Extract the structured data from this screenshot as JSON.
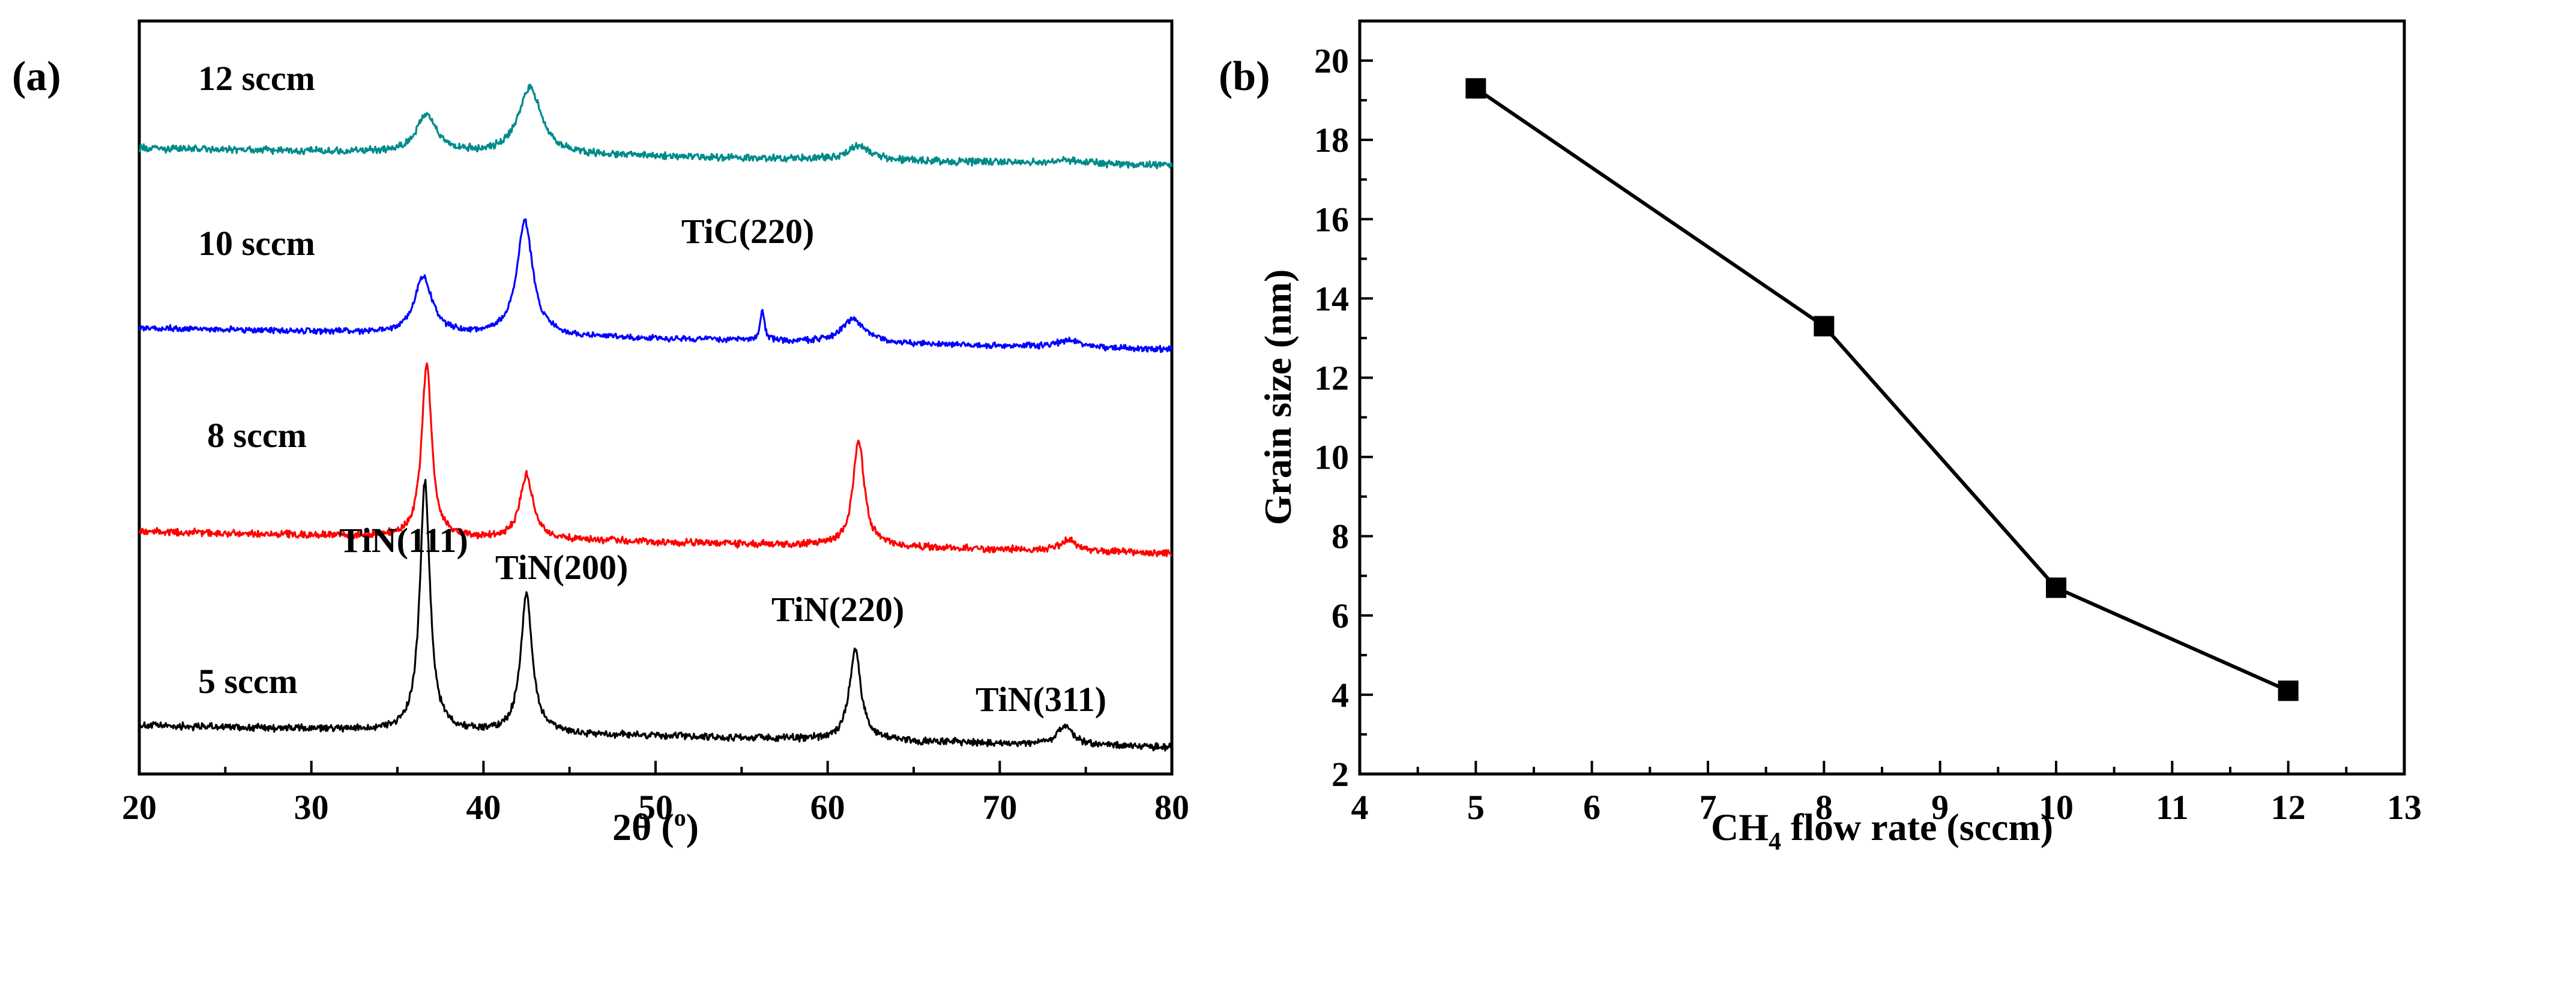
{
  "chart_data": [
    {
      "type": "line",
      "panel_label": "(a)",
      "title": "",
      "xlabel": "2θ (",
      "xlabel_superscript": "o",
      "xlabel_suffix": ")",
      "ylabel": "",
      "xlim": [
        20,
        80
      ],
      "xticks": [
        20,
        30,
        40,
        50,
        60,
        70,
        80
      ],
      "xticklabels": [
        "20",
        "30",
        "40",
        "50",
        "60",
        "70",
        "80"
      ],
      "yticks_visible": false,
      "grid": false,
      "series": [
        {
          "name": "5 sccm",
          "color": "#000000",
          "baseline": 0.0,
          "background": [
            0.14,
            0.05
          ],
          "noise": 0.012,
          "peaks": [
            {
              "x": 36.6,
              "height": 1.04,
              "width": 0.35
            },
            {
              "x": 42.5,
              "height": 0.58,
              "width": 0.4
            },
            {
              "x": 61.6,
              "height": 0.38,
              "width": 0.4
            },
            {
              "x": 73.8,
              "height": 0.08,
              "width": 0.5
            }
          ]
        },
        {
          "name": "8 sccm",
          "color": "#ff0000",
          "baseline": 0.82,
          "background": [
            0.13,
            0.04
          ],
          "noise": 0.012,
          "peaks": [
            {
              "x": 36.7,
              "height": 0.72,
              "width": 0.35
            },
            {
              "x": 42.5,
              "height": 0.27,
              "width": 0.45
            },
            {
              "x": 61.8,
              "height": 0.44,
              "width": 0.4
            },
            {
              "x": 74.0,
              "height": 0.05,
              "width": 0.5
            }
          ]
        },
        {
          "name": "10 sccm",
          "color": "#0000ff",
          "baseline": 1.67,
          "background": [
            0.13,
            0.04
          ],
          "noise": 0.01,
          "peaks": [
            {
              "x": 36.5,
              "height": 0.24,
              "width": 0.6
            },
            {
              "x": 42.4,
              "height": 0.48,
              "width": 0.55
            },
            {
              "x": 56.2,
              "height": 0.13,
              "width": 0.15
            },
            {
              "x": 61.5,
              "height": 0.1,
              "width": 0.8
            },
            {
              "x": 74.0,
              "height": 0.03,
              "width": 0.8
            }
          ]
        },
        {
          "name": "12 sccm",
          "color": "#008b8b",
          "baseline": 2.45,
          "background": [
            0.1,
            0.03
          ],
          "noise": 0.012,
          "peaks": [
            {
              "x": 36.7,
              "height": 0.16,
              "width": 0.7
            },
            {
              "x": 42.7,
              "height": 0.28,
              "width": 0.8
            },
            {
              "x": 61.8,
              "height": 0.06,
              "width": 0.8
            },
            {
              "x": 74.0,
              "height": 0.015,
              "width": 1.0
            }
          ]
        }
      ],
      "annotations": [
        "TiN(111)",
        "TiN(200)",
        "TiN(220)",
        "TiN(311)",
        "TiC(220)"
      ]
    },
    {
      "type": "line",
      "panel_label": "(b)",
      "title": "",
      "xlabel": "CH",
      "xlabel_subscript": "4",
      "xlabel_suffix": " flow rate (sccm)",
      "ylabel": "Grain size (nm)",
      "xlim": [
        4,
        13
      ],
      "ylim": [
        2,
        21
      ],
      "xticks": [
        4,
        5,
        6,
        7,
        8,
        9,
        10,
        11,
        12,
        13
      ],
      "xticklabels": [
        "4",
        "5",
        "6",
        "7",
        "8",
        "9",
        "10",
        "11",
        "12",
        "13"
      ],
      "yticks": [
        2,
        4,
        6,
        8,
        10,
        12,
        14,
        16,
        18,
        20
      ],
      "yticklabels": [
        "2",
        "4",
        "6",
        "8",
        "10",
        "12",
        "14",
        "16",
        "18",
        "20"
      ],
      "grid": false,
      "marker": "square",
      "series": [
        {
          "name": "Grain size",
          "x": [
            5,
            8,
            10,
            12
          ],
          "y": [
            19.3,
            13.3,
            6.7,
            4.1
          ]
        }
      ]
    }
  ]
}
